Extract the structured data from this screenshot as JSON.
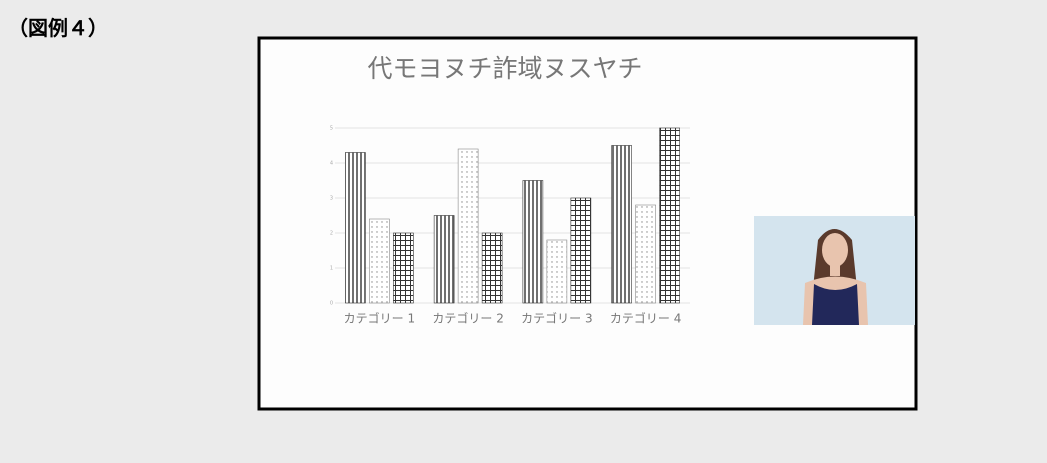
{
  "label": "（図例４）",
  "chart_data": {
    "type": "bar",
    "title": "代モヨヌチ詐域ヌスヤチ",
    "categories": [
      "カテゴリー 1",
      "カテゴリー 2",
      "カテゴリー 3",
      "カテゴリー 4"
    ],
    "series": [
      {
        "color": "#333333",
        "pattern": "vertical-lines",
        "values": [
          4.3,
          2.5,
          3.5,
          4.5
        ]
      },
      {
        "color": "#888888",
        "pattern": "dots",
        "values": [
          2.4,
          4.4,
          1.8,
          2.8
        ]
      },
      {
        "color": "#333333",
        "pattern": "grid",
        "values": [
          2,
          2,
          3,
          5
        ]
      }
    ],
    "ylim": [
      0,
      5
    ],
    "yticks": [
      0,
      1,
      2,
      3,
      4,
      5
    ],
    "grid": true
  }
}
